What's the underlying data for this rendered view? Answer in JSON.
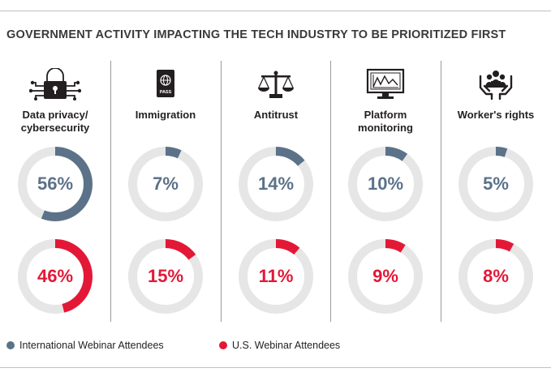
{
  "title": "GOVERNMENT ACTIVITY IMPACTING THE TECH INDUSTRY TO BE PRIORITIZED FIRST",
  "colors": {
    "intl": "#5b7289",
    "us": "#e31837",
    "track": "#e6e6e6"
  },
  "icons": [
    "lock-circuit-icon",
    "passport-icon",
    "scales-icon",
    "monitor-chart-icon",
    "hands-people-icon"
  ],
  "passport_text": "PASS",
  "chart_data": {
    "type": "donut",
    "title": "GOVERNMENT ACTIVITY IMPACTING THE TECH INDUSTRY TO BE PRIORITIZED FIRST",
    "categories": [
      "Data privacy/ cybersecurity",
      "Immigration",
      "Antitrust",
      "Platform monitoring",
      "Worker's rights"
    ],
    "series": [
      {
        "name": "International Webinar Attendees",
        "values": [
          56,
          7,
          14,
          10,
          5
        ],
        "labels": [
          "56%",
          "7%",
          "14%",
          "10%",
          "5%"
        ]
      },
      {
        "name": "U.S. Webinar Attendees",
        "values": [
          46,
          15,
          11,
          9,
          8
        ],
        "labels": [
          "46%",
          "15%",
          "11%",
          "9%",
          "8%"
        ]
      }
    ],
    "legend": [
      "International Webinar Attendees",
      "U.S. Webinar Attendees"
    ],
    "legend_position": "bottom-left"
  }
}
